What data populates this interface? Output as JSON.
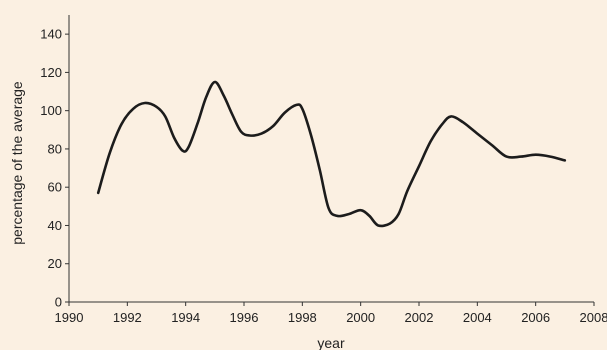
{
  "chart_data": {
    "type": "line",
    "title": "",
    "xlabel": "year",
    "ylabel": "percentage of the average",
    "xlim": [
      1990,
      2008
    ],
    "ylim": [
      0,
      150
    ],
    "x_ticks": [
      1990,
      1992,
      1994,
      1996,
      1998,
      2000,
      2002,
      2004,
      2006,
      2008
    ],
    "y_ticks": [
      0,
      20,
      40,
      60,
      80,
      100,
      120,
      140
    ],
    "grid": false,
    "series": [
      {
        "x": [
          1991.0,
          1991.4,
          1991.8,
          1992.2,
          1992.6,
          1993.0,
          1993.3,
          1993.6,
          1993.9,
          1994.1,
          1994.4,
          1994.7,
          1995.0,
          1995.3,
          1995.6,
          1995.9,
          1996.2,
          1996.6,
          1997.0,
          1997.4,
          1997.8,
          1998.0,
          1998.3,
          1998.6,
          1998.9,
          1999.2,
          1999.6,
          2000.0,
          2000.3,
          2000.6,
          2001.0,
          2001.3,
          2001.6,
          2002.0,
          2002.4,
          2002.8,
          2003.1,
          2003.5,
          2004.0,
          2004.5,
          2005.0,
          2005.5,
          2006.0,
          2006.5,
          2007.0
        ],
        "y": [
          57,
          78,
          93,
          101,
          104,
          102,
          97,
          86,
          79,
          81,
          93,
          107,
          115,
          108,
          98,
          89,
          87,
          88,
          92,
          99,
          103,
          101,
          87,
          69,
          49,
          45,
          46,
          48,
          45,
          40,
          41,
          46,
          58,
          71,
          84,
          93,
          97,
          94,
          88,
          82,
          76,
          76,
          77,
          76,
          74
        ]
      }
    ]
  }
}
